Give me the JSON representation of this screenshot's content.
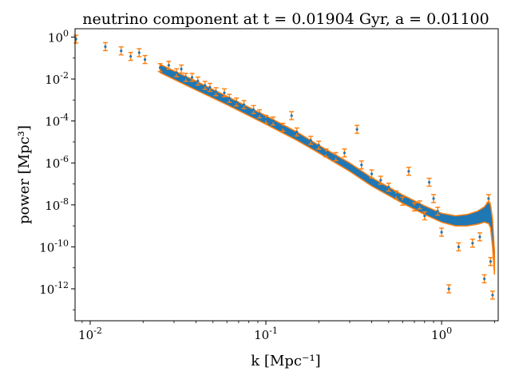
{
  "chart_data": {
    "type": "scatter",
    "title": "neutrino component at t = 0.01904 Gyr, a = 0.01100",
    "xlabel": "k [Mpc⁻¹]",
    "ylabel": "power [Mpc³]",
    "x_scale": "log",
    "y_scale": "log",
    "xlim": [
      0.0082,
      2.1
    ],
    "ylim": [
      3e-14,
      2.5
    ],
    "x_ticks": [
      {
        "value": 0.01,
        "label": "10",
        "exp": "-2"
      },
      {
        "value": 0.1,
        "label": "10",
        "exp": "-1"
      },
      {
        "value": 1,
        "label": "10",
        "exp": "0"
      }
    ],
    "y_ticks": [
      {
        "value": 1,
        "label": "10",
        "exp": "0"
      },
      {
        "value": 0.01,
        "label": "10",
        "exp": "-2"
      },
      {
        "value": 0.0001,
        "label": "10",
        "exp": "-4"
      },
      {
        "value": 1e-06,
        "label": "10",
        "exp": "-6"
      },
      {
        "value": 1e-08,
        "label": "10",
        "exp": "-8"
      },
      {
        "value": 1e-10,
        "label": "10",
        "exp": "-10"
      },
      {
        "value": 1e-12,
        "label": "10",
        "exp": "-12"
      }
    ],
    "grid": false,
    "colors": {
      "marker": "#1f77b4",
      "errorbar": "#ff7f0e",
      "band": "#1f77b4"
    },
    "band": {
      "x": [
        0.025,
        0.04,
        0.06,
        0.1,
        0.15,
        0.2,
        0.3,
        0.4,
        0.6,
        0.8,
        1.0,
        1.2,
        1.4,
        1.6,
        1.75,
        1.85,
        1.9,
        1.95,
        2.0
      ],
      "y_low": [
        0.02,
        0.003,
        0.0006,
        7e-05,
        1.2e-05,
        3e-06,
        4e-07,
        8e-08,
        1.2e-08,
        3.5e-09,
        1.5e-09,
        1e-09,
        1e-09,
        1.2e-09,
        1.5e-09,
        1.3e-09,
        8e-10,
        1e-10,
        5e-12
      ],
      "y_high": [
        0.05,
        0.008,
        0.0015,
        0.00018,
        3e-05,
        7e-06,
        1e-06,
        2e-07,
        3e-08,
        9e-09,
        4e-09,
        3e-09,
        3.5e-09,
        5e-09,
        8e-09,
        1.5e-08,
        1e-08,
        2e-09,
        6e-11
      ]
    },
    "points": [
      {
        "x": 0.0083,
        "y": 0.8
      },
      {
        "x": 0.0122,
        "y": 0.35
      },
      {
        "x": 0.015,
        "y": 0.22
      },
      {
        "x": 0.017,
        "y": 0.12
      },
      {
        "x": 0.019,
        "y": 0.18
      },
      {
        "x": 0.0205,
        "y": 0.085
      },
      {
        "x": 0.025,
        "y": 0.035
      },
      {
        "x": 0.028,
        "y": 0.045
      },
      {
        "x": 0.031,
        "y": 0.02
      },
      {
        "x": 0.033,
        "y": 0.03
      },
      {
        "x": 0.035,
        "y": 0.012
      },
      {
        "x": 0.038,
        "y": 0.012
      },
      {
        "x": 0.041,
        "y": 0.008
      },
      {
        "x": 0.045,
        "y": 0.005
      },
      {
        "x": 0.048,
        "y": 0.004
      },
      {
        "x": 0.052,
        "y": 0.0025
      },
      {
        "x": 0.058,
        "y": 0.0022
      },
      {
        "x": 0.062,
        "y": 0.0012
      },
      {
        "x": 0.068,
        "y": 0.0008
      },
      {
        "x": 0.075,
        "y": 0.0006
      },
      {
        "x": 0.085,
        "y": 0.00035
      },
      {
        "x": 0.092,
        "y": 0.00022
      },
      {
        "x": 0.1,
        "y": 0.00012
      },
      {
        "x": 0.11,
        "y": 0.0001
      },
      {
        "x": 0.125,
        "y": 5e-05
      },
      {
        "x": 0.14,
        "y": 0.00018
      },
      {
        "x": 0.15,
        "y": 3e-05
      },
      {
        "x": 0.18,
        "y": 1.2e-05
      },
      {
        "x": 0.2,
        "y": 7e-06
      },
      {
        "x": 0.22,
        "y": 3e-06
      },
      {
        "x": 0.25,
        "y": 2e-06
      },
      {
        "x": 0.28,
        "y": 3e-06
      },
      {
        "x": 0.33,
        "y": 4e-05
      },
      {
        "x": 0.35,
        "y": 8e-07
      },
      {
        "x": 0.4,
        "y": 3e-07
      },
      {
        "x": 0.45,
        "y": 1.5e-07
      },
      {
        "x": 0.5,
        "y": 7e-08
      },
      {
        "x": 0.55,
        "y": 3e-08
      },
      {
        "x": 0.6,
        "y": 1.5e-08
      },
      {
        "x": 0.65,
        "y": 4e-07
      },
      {
        "x": 0.7,
        "y": 8e-09
      },
      {
        "x": 0.75,
        "y": 1e-08
      },
      {
        "x": 0.8,
        "y": 3e-09
      },
      {
        "x": 0.85,
        "y": 1.2e-07
      },
      {
        "x": 0.9,
        "y": 2e-08
      },
      {
        "x": 0.95,
        "y": 5e-09
      },
      {
        "x": 1.0,
        "y": 5e-10
      },
      {
        "x": 1.1,
        "y": 1e-12
      },
      {
        "x": 1.25,
        "y": 1e-10
      },
      {
        "x": 1.5,
        "y": 1.5e-10
      },
      {
        "x": 1.65,
        "y": 3e-10
      },
      {
        "x": 1.75,
        "y": 3e-12
      },
      {
        "x": 1.85,
        "y": 2e-08
      },
      {
        "x": 1.9,
        "y": 2e-11
      },
      {
        "x": 1.95,
        "y": 5e-13
      }
    ]
  }
}
